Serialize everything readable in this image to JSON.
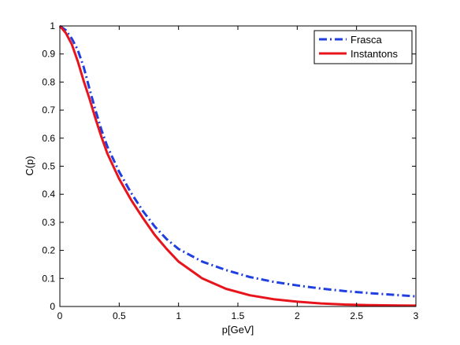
{
  "chart_data": {
    "type": "line",
    "xlabel": "p[GeV]",
    "ylabel": "C(p)",
    "xlim": [
      0,
      3
    ],
    "ylim": [
      0,
      1
    ],
    "xticks": [
      "0",
      "0.5",
      "1",
      "1.5",
      "2",
      "2.5",
      "3"
    ],
    "yticks": [
      "0",
      "0.1",
      "0.2",
      "0.3",
      "0.4",
      "0.5",
      "0.6",
      "0.7",
      "0.8",
      "0.9",
      "1"
    ],
    "grid": false,
    "legend_position": "top-right",
    "series": [
      {
        "name": "Frasca",
        "color": "#1f3fe0",
        "style": "dash-dot",
        "x": [
          0,
          0.05,
          0.1,
          0.15,
          0.2,
          0.25,
          0.3,
          0.35,
          0.4,
          0.5,
          0.6,
          0.7,
          0.8,
          0.9,
          1.0,
          1.2,
          1.4,
          1.6,
          1.8,
          2.0,
          2.2,
          2.4,
          2.6,
          2.8,
          3.0
        ],
        "y": [
          1.0,
          0.985,
          0.955,
          0.915,
          0.855,
          0.775,
          0.7,
          0.63,
          0.57,
          0.48,
          0.405,
          0.34,
          0.285,
          0.24,
          0.205,
          0.16,
          0.13,
          0.105,
          0.088,
          0.075,
          0.064,
          0.055,
          0.048,
          0.042,
          0.036
        ]
      },
      {
        "name": "Instantons",
        "color": "#e8141c",
        "style": "solid",
        "x": [
          0,
          0.05,
          0.1,
          0.15,
          0.2,
          0.25,
          0.3,
          0.35,
          0.4,
          0.5,
          0.6,
          0.7,
          0.8,
          0.9,
          1.0,
          1.2,
          1.4,
          1.6,
          1.8,
          2.0,
          2.2,
          2.4,
          2.6,
          2.8,
          3.0
        ],
        "y": [
          1.0,
          0.975,
          0.935,
          0.875,
          0.805,
          0.74,
          0.67,
          0.605,
          0.545,
          0.455,
          0.38,
          0.315,
          0.255,
          0.205,
          0.16,
          0.1,
          0.063,
          0.04,
          0.026,
          0.017,
          0.011,
          0.007,
          0.005,
          0.004,
          0.003
        ]
      }
    ]
  }
}
